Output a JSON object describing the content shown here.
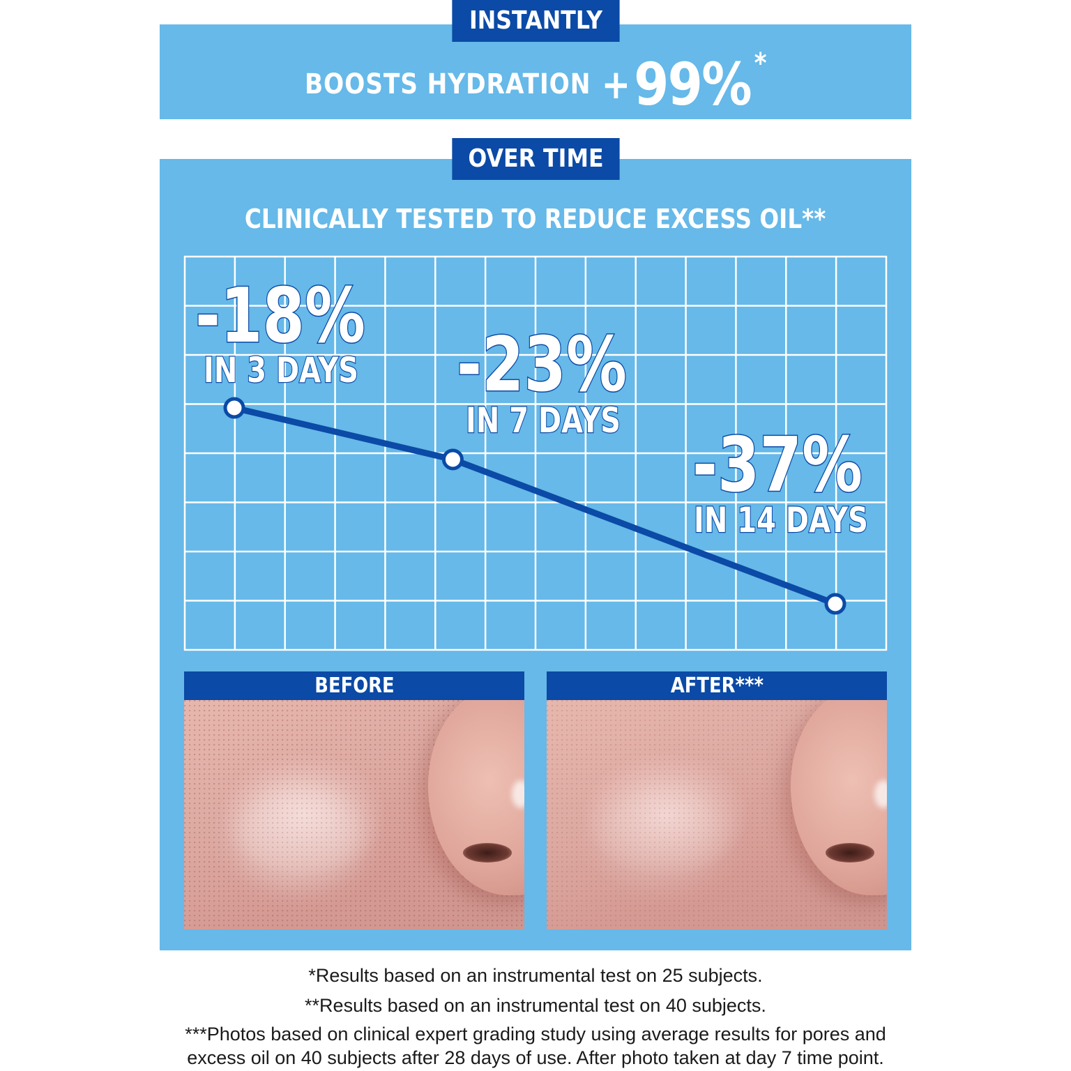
{
  "instantly": {
    "tab_label": "INSTANTLY",
    "claim_label": "BOOSTS HYDRATION",
    "claim_sign": "+",
    "claim_value": "99%",
    "claim_marker": "*"
  },
  "over_time": {
    "tab_label": "OVER TIME",
    "headline": "CLINICALLY TESTED TO REDUCE EXCESS OIL**"
  },
  "chart_data": {
    "type": "line",
    "title": "",
    "xlabel": "",
    "ylabel": "",
    "grid": true,
    "x": [
      3,
      7,
      14
    ],
    "series": [
      {
        "values": [
          -18,
          -23,
          -37
        ],
        "point_labels": [
          "-18%",
          "-23%",
          "-37%"
        ],
        "point_sublabels": [
          "IN 3 DAYS",
          "IN 7 DAYS",
          "IN 14 DAYS"
        ]
      }
    ],
    "colors": {
      "line": "#0b4aa6",
      "grid": "#ffffff",
      "background": "#66b9e8"
    }
  },
  "photos": {
    "before_label": "BEFORE",
    "after_label": "AFTER***"
  },
  "footnotes": {
    "one": "*Results based on an instrumental test on 25 subjects.",
    "two": "**Results based on an instrumental test on 40 subjects.",
    "three": "***Photos based on clinical expert grading study using average results for pores and excess oil on 40 subjects after 28 days of use. After photo taken at day 7 time point."
  }
}
